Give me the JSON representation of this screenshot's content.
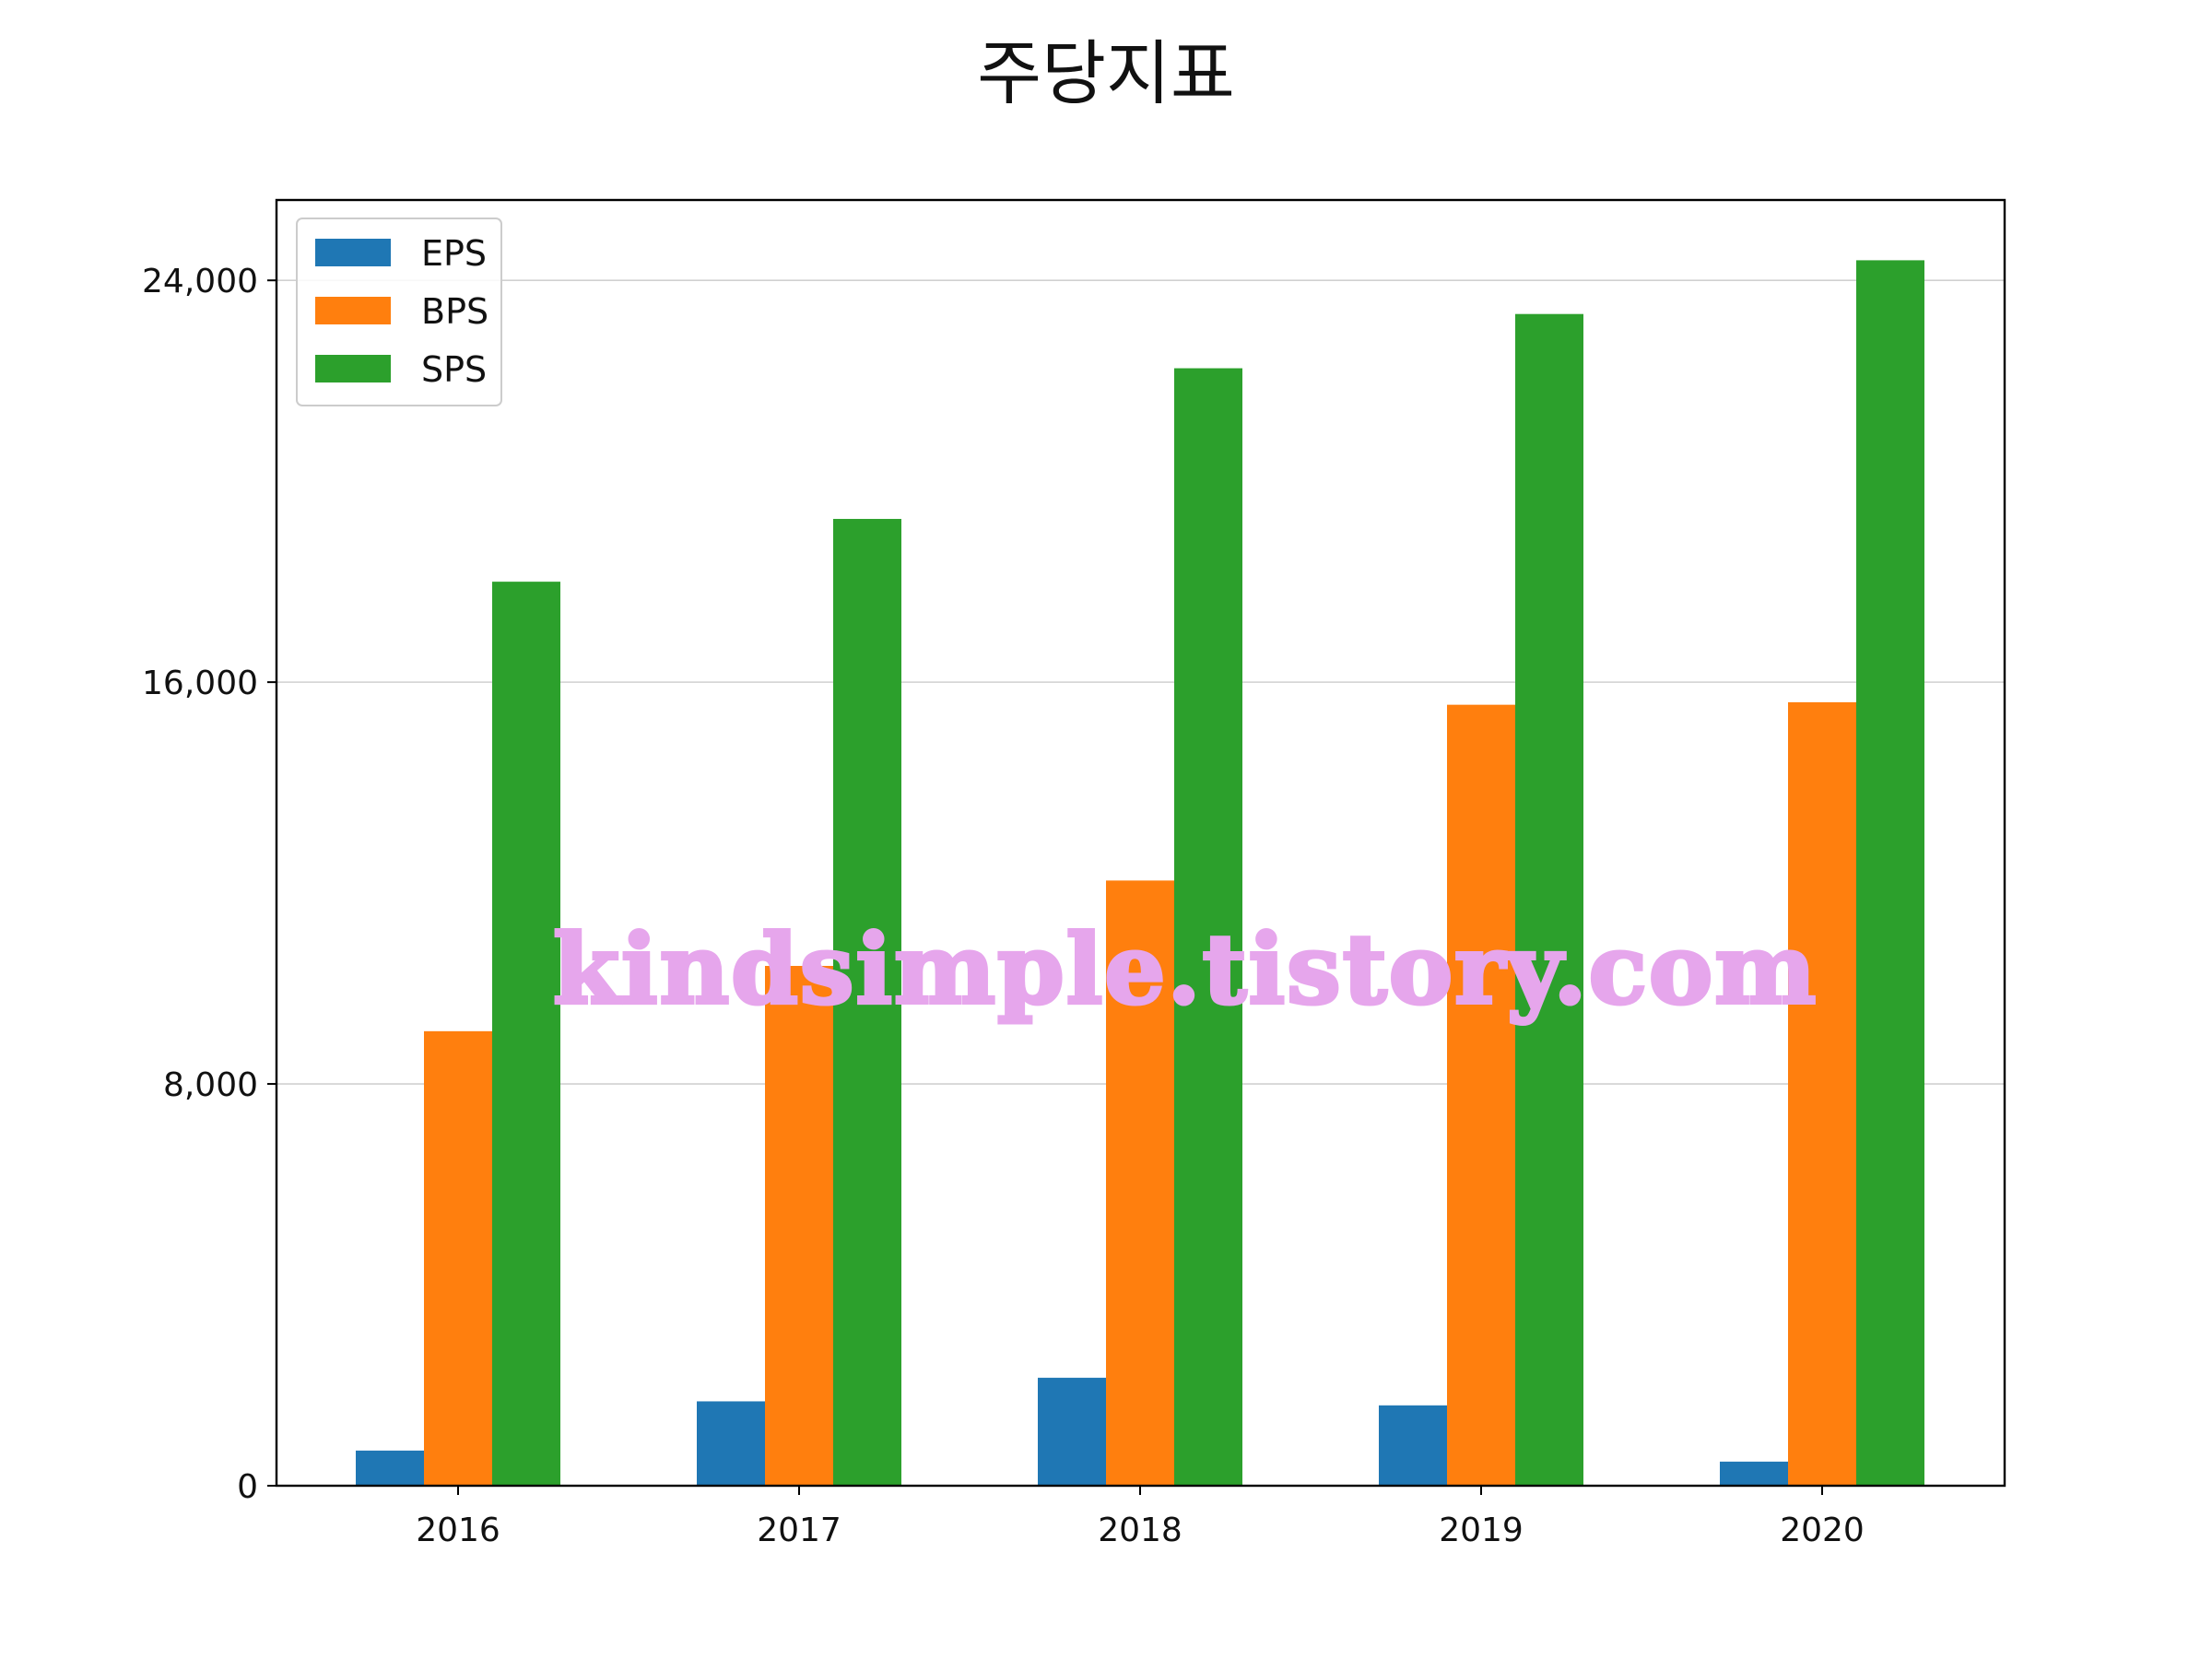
{
  "chart_data": {
    "type": "bar",
    "title": "주당지표",
    "xlabel": "",
    "ylabel": "",
    "categories": [
      "2016",
      "2017",
      "2018",
      "2019",
      "2020"
    ],
    "series": [
      {
        "name": "EPS",
        "color": "#1f77b4",
        "values": [
          700,
          1680,
          2150,
          1600,
          480
        ]
      },
      {
        "name": "BPS",
        "color": "#ff7f0e",
        "values": [
          9050,
          10350,
          12050,
          15550,
          15600
        ]
      },
      {
        "name": "SPS",
        "color": "#2ca02c",
        "values": [
          18000,
          19250,
          22250,
          23330,
          24400
        ]
      }
    ],
    "ylim": [
      0,
      25600
    ],
    "yticks": [
      0,
      8000,
      16000,
      24000
    ],
    "ytick_labels": [
      "0",
      "8,000",
      "16,000",
      "24,000"
    ],
    "grid": "y",
    "legend": "top-left",
    "watermark": "kindsimple.tistory.com"
  }
}
